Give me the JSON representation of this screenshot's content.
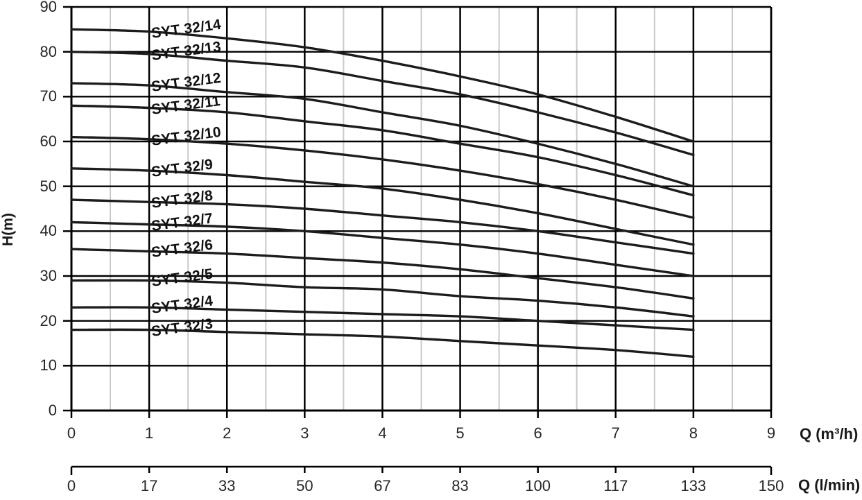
{
  "chart_data": {
    "type": "line",
    "title": "",
    "ylabel": "H(m)",
    "xlabel_primary": "Q (m³/h)",
    "xlabel_secondary": "Q (l/min)",
    "x_range_m3h": [
      0,
      9
    ],
    "y_range": [
      0,
      90
    ],
    "grid": {
      "major_color": "#000000",
      "minor_color": "#c9c9c9",
      "minor_vertical_step_m3h": 0.5,
      "horizontal_step_m": 10
    },
    "curve_color": "#1c1c1c",
    "legend_position": "inline-labels-on-curves",
    "x": [
      0,
      1,
      2,
      3,
      4,
      5,
      6,
      7,
      8
    ],
    "series": [
      {
        "name": "SYT 32/14",
        "values": [
          85,
          84.5,
          83,
          81,
          78,
          74.5,
          70.5,
          65.5,
          60
        ]
      },
      {
        "name": "SYT 32/13",
        "values": [
          80,
          79.5,
          78,
          76.5,
          73.5,
          70.5,
          66.5,
          62,
          57
        ]
      },
      {
        "name": "SYT 32/12",
        "values": [
          73,
          72.5,
          71,
          69.5,
          66.5,
          63.5,
          59.5,
          55,
          50
        ]
      },
      {
        "name": "SYT 32/11",
        "values": [
          68,
          67.5,
          66.5,
          64.5,
          62.5,
          59.5,
          56.5,
          52.5,
          48
        ]
      },
      {
        "name": "SYT 32/10",
        "values": [
          61,
          60.5,
          59.5,
          58,
          56,
          53.5,
          50.5,
          47,
          43
        ]
      },
      {
        "name": "SYT 32/9",
        "values": [
          54,
          53.5,
          52.5,
          51,
          49.5,
          47,
          44,
          40.5,
          37
        ]
      },
      {
        "name": "SYT 32/8",
        "values": [
          47,
          46.5,
          46,
          45,
          43.5,
          42,
          40,
          37.5,
          35
        ]
      },
      {
        "name": "SYT 32/7",
        "values": [
          42,
          41.5,
          41,
          40,
          38.5,
          37,
          35,
          32.5,
          30
        ]
      },
      {
        "name": "SYT 32/6",
        "values": [
          36,
          35.5,
          35,
          34,
          33,
          31.5,
          29.5,
          27.5,
          25
        ]
      },
      {
        "name": "SYT 32/5",
        "values": [
          29,
          29,
          28.5,
          27.5,
          27,
          25.5,
          24.5,
          23,
          21
        ]
      },
      {
        "name": "SYT 32/4",
        "values": [
          23,
          23,
          22.5,
          22,
          21.5,
          21,
          20,
          19,
          18
        ]
      },
      {
        "name": "SYT 32/3",
        "values": [
          18,
          18,
          17.5,
          17,
          16.5,
          15.5,
          14.5,
          13.5,
          12
        ]
      }
    ],
    "y_ticks": [
      0,
      10,
      20,
      30,
      40,
      50,
      60,
      70,
      80,
      90
    ],
    "x_ticks_m3h": [
      0,
      1,
      2,
      3,
      4,
      5,
      6,
      7,
      8,
      9
    ],
    "x_ticks_lmin": [
      0,
      17,
      33,
      50,
      67,
      83,
      100,
      117,
      133,
      150
    ]
  }
}
